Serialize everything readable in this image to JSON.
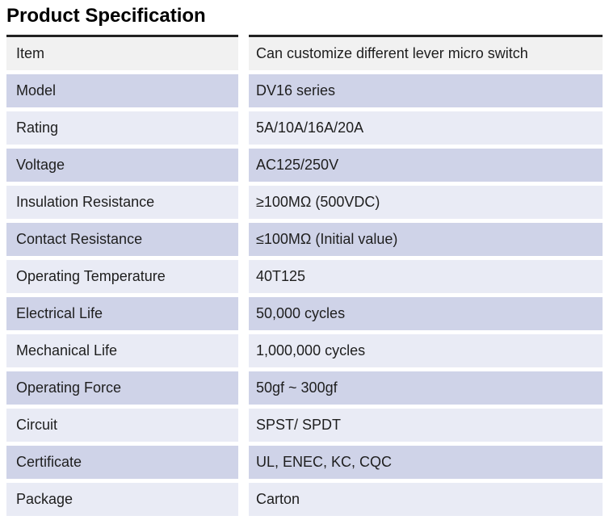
{
  "title": "Product Specification",
  "table": {
    "rows": [
      {
        "label": "Item",
        "value": "Can customize different lever micro switch",
        "shade": "gray"
      },
      {
        "label": "Model",
        "value": "DV16 series",
        "shade": "dark"
      },
      {
        "label": "Rating",
        "value": "5A/10A/16A/20A",
        "shade": "light"
      },
      {
        "label": "Voltage",
        "value": "AC125/250V",
        "shade": "dark"
      },
      {
        "label": "Insulation Resistance",
        "value": "≥100MΩ (500VDC)",
        "shade": "light"
      },
      {
        "label": "Contact Resistance",
        "value": "≤100MΩ (Initial value)",
        "shade": "dark"
      },
      {
        "label": "Operating Temperature",
        "value": "40T125",
        "shade": "light"
      },
      {
        "label": "Electrical Life",
        "value": "50,000 cycles",
        "shade": "dark"
      },
      {
        "label": "Mechanical Life",
        "value": "1,000,000 cycles",
        "shade": "light"
      },
      {
        "label": "Operating Force",
        "value": "50gf ~ 300gf",
        "shade": "dark"
      },
      {
        "label": "Circuit",
        "value": "SPST/ SPDT",
        "shade": "light"
      },
      {
        "label": "Certificate",
        "value": "UL, ENEC, KC, CQC",
        "shade": "dark"
      },
      {
        "label": "Package",
        "value": "Carton",
        "shade": "light"
      }
    ]
  },
  "colors": {
    "row_gray": "#f1f1f1",
    "row_dark": "#cfd3e8",
    "row_light": "#e9ebf5",
    "border_top": "#222222",
    "text": "#1e1e1e",
    "title": "#000000"
  }
}
